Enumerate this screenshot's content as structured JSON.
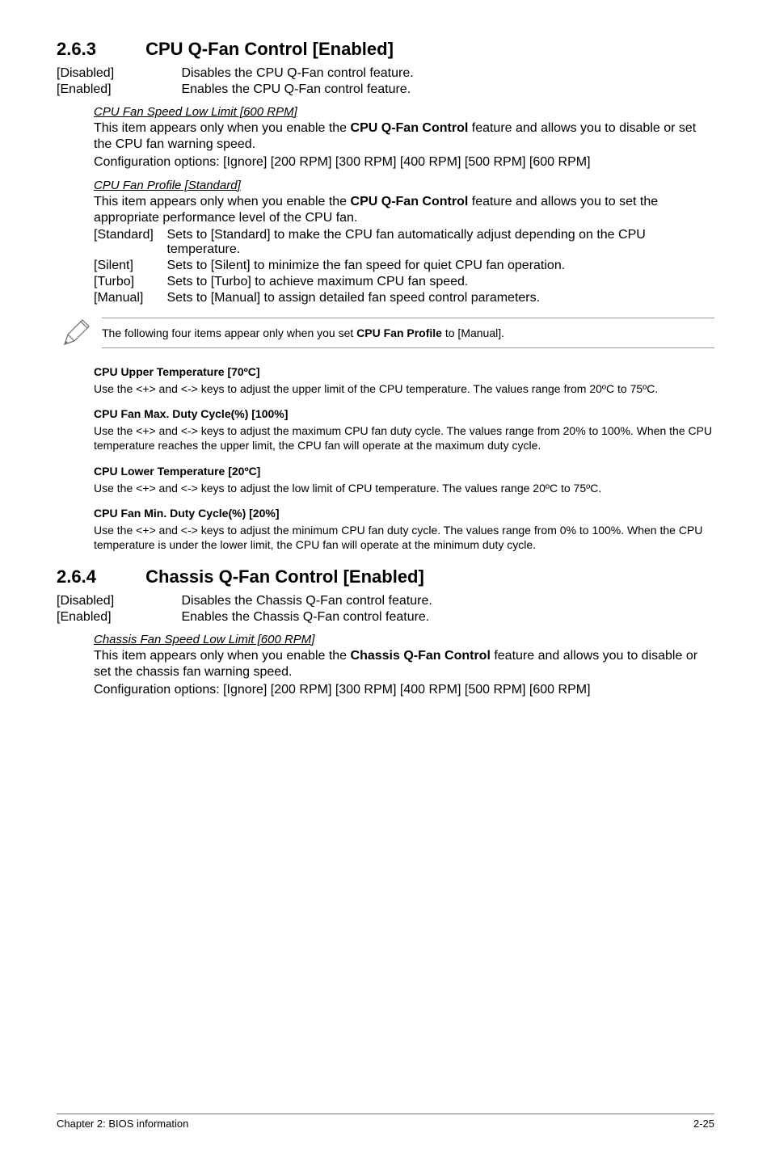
{
  "section263": {
    "number": "2.6.3",
    "title": "CPU Q-Fan Control [Enabled]",
    "options": [
      {
        "label": "[Disabled]",
        "desc": "Disables the CPU Q-Fan control feature."
      },
      {
        "label": "[Enabled]",
        "desc": "Enables the CPU Q-Fan control feature."
      }
    ],
    "cpuSpeedLow": {
      "head": "CPU Fan Speed Low Limit [600 RPM]",
      "p1": "This item appears only when you enable the <b>CPU Q-Fan Control</b> feature and allows you to disable or set the CPU fan warning speed.",
      "p2": "Configuration options: [Ignore] [200 RPM] [300 RPM] [400 RPM] [500 RPM] [600 RPM]"
    },
    "cpuProfile": {
      "head": "CPU Fan Profile [Standard]",
      "p1": "This item appears only when you enable the <b>CPU Q-Fan Control</b> feature and allows you to set the appropriate performance level of the CPU fan.",
      "options": [
        {
          "label": "[Standard]",
          "desc": "Sets to [Standard] to make the CPU fan automatically adjust depending on the CPU temperature."
        },
        {
          "label": "[Silent]",
          "desc": "Sets to [Silent] to minimize the fan speed for quiet CPU fan operation."
        },
        {
          "label": "[Turbo]",
          "desc": "Sets to [Turbo] to achieve maximum CPU fan speed."
        },
        {
          "label": "[Manual]",
          "desc": "Sets to [Manual] to assign detailed fan speed control parameters."
        }
      ]
    },
    "note": "The following four items appear only when you set <b>CPU Fan Profile</b> to [Manual].",
    "manualItems": [
      {
        "title": "CPU Upper Temperature [70ºC]",
        "body": "Use the <+> and <-> keys to adjust the upper limit of the CPU temperature. The values range from 20ºC to 75ºC."
      },
      {
        "title": "CPU Fan Max. Duty Cycle(%) [100%]",
        "body": "Use the <+> and <-> keys to adjust the maximum CPU fan duty cycle. The values range from 20% to 100%. When the CPU temperature reaches the upper limit, the CPU fan will operate at the maximum duty cycle."
      },
      {
        "title": "CPU Lower Temperature [20ºC]",
        "body": "Use the <+> and <-> keys to adjust the low limit of CPU temperature. The values range 20ºC to 75ºC."
      },
      {
        "title": "CPU Fan Min. Duty Cycle(%) [20%]",
        "body": "Use the <+> and <-> keys to adjust the minimum CPU fan duty cycle. The values range from 0% to 100%. When the CPU temperature is under the lower limit, the CPU fan will operate at the minimum duty cycle."
      }
    ]
  },
  "section264": {
    "number": "2.6.4",
    "title": "Chassis Q-Fan Control [Enabled]",
    "options": [
      {
        "label": "[Disabled]",
        "desc": "Disables the Chassis Q-Fan control feature."
      },
      {
        "label": "[Enabled]",
        "desc": "Enables the Chassis Q-Fan control feature."
      }
    ],
    "chassisSpeedLow": {
      "head": "Chassis Fan Speed Low Limit [600 RPM]",
      "p1": "This item appears only when you enable the <b>Chassis Q-Fan Control</b> feature and allows you to disable or set the chassis fan warning speed.",
      "p2": "Configuration options: [Ignore] [200 RPM] [300 RPM] [400 RPM] [500 RPM] [600 RPM]"
    }
  },
  "footer": {
    "left": "Chapter 2: BIOS information",
    "right": "2-25"
  }
}
